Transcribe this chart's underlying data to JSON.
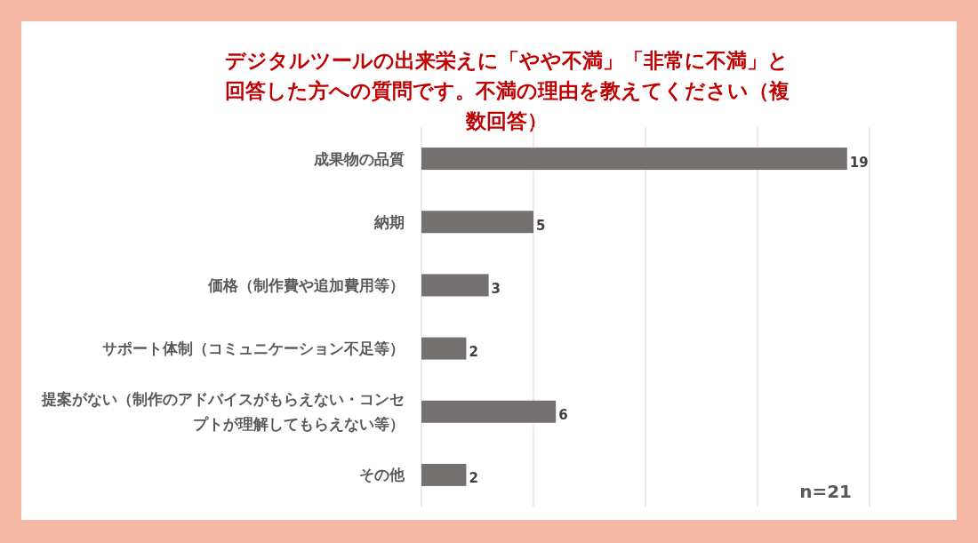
{
  "chart_data": {
    "type": "bar",
    "orientation": "horizontal",
    "title": "デジタルツールの出来栄えに「やや不満」「非常に不満」と回答した方への質問です。不満の理由を教えてください（複数回答）",
    "categories": [
      "成果物の品質",
      "納期",
      "価格（制作費や追加費用等）",
      "サポート体制（コミュニケーション不足等）",
      "提案がない（制作のアドバイスがもらえない・コンセプトが理解してもらえない等）",
      "その他"
    ],
    "values": [
      19,
      5,
      3,
      2,
      6,
      2
    ],
    "color": "#767171",
    "data_labels": true,
    "xlim": [
      0,
      20
    ],
    "xticks": [
      {
        "value": 0,
        "label": null
      },
      {
        "value": 5,
        "label": null
      },
      {
        "value": 10,
        "label": null
      },
      {
        "value": 15,
        "label": null
      },
      {
        "value": 20,
        "label": null
      }
    ],
    "grid": "x",
    "tick_labels": "y",
    "annotations": [
      "n=21"
    ]
  }
}
